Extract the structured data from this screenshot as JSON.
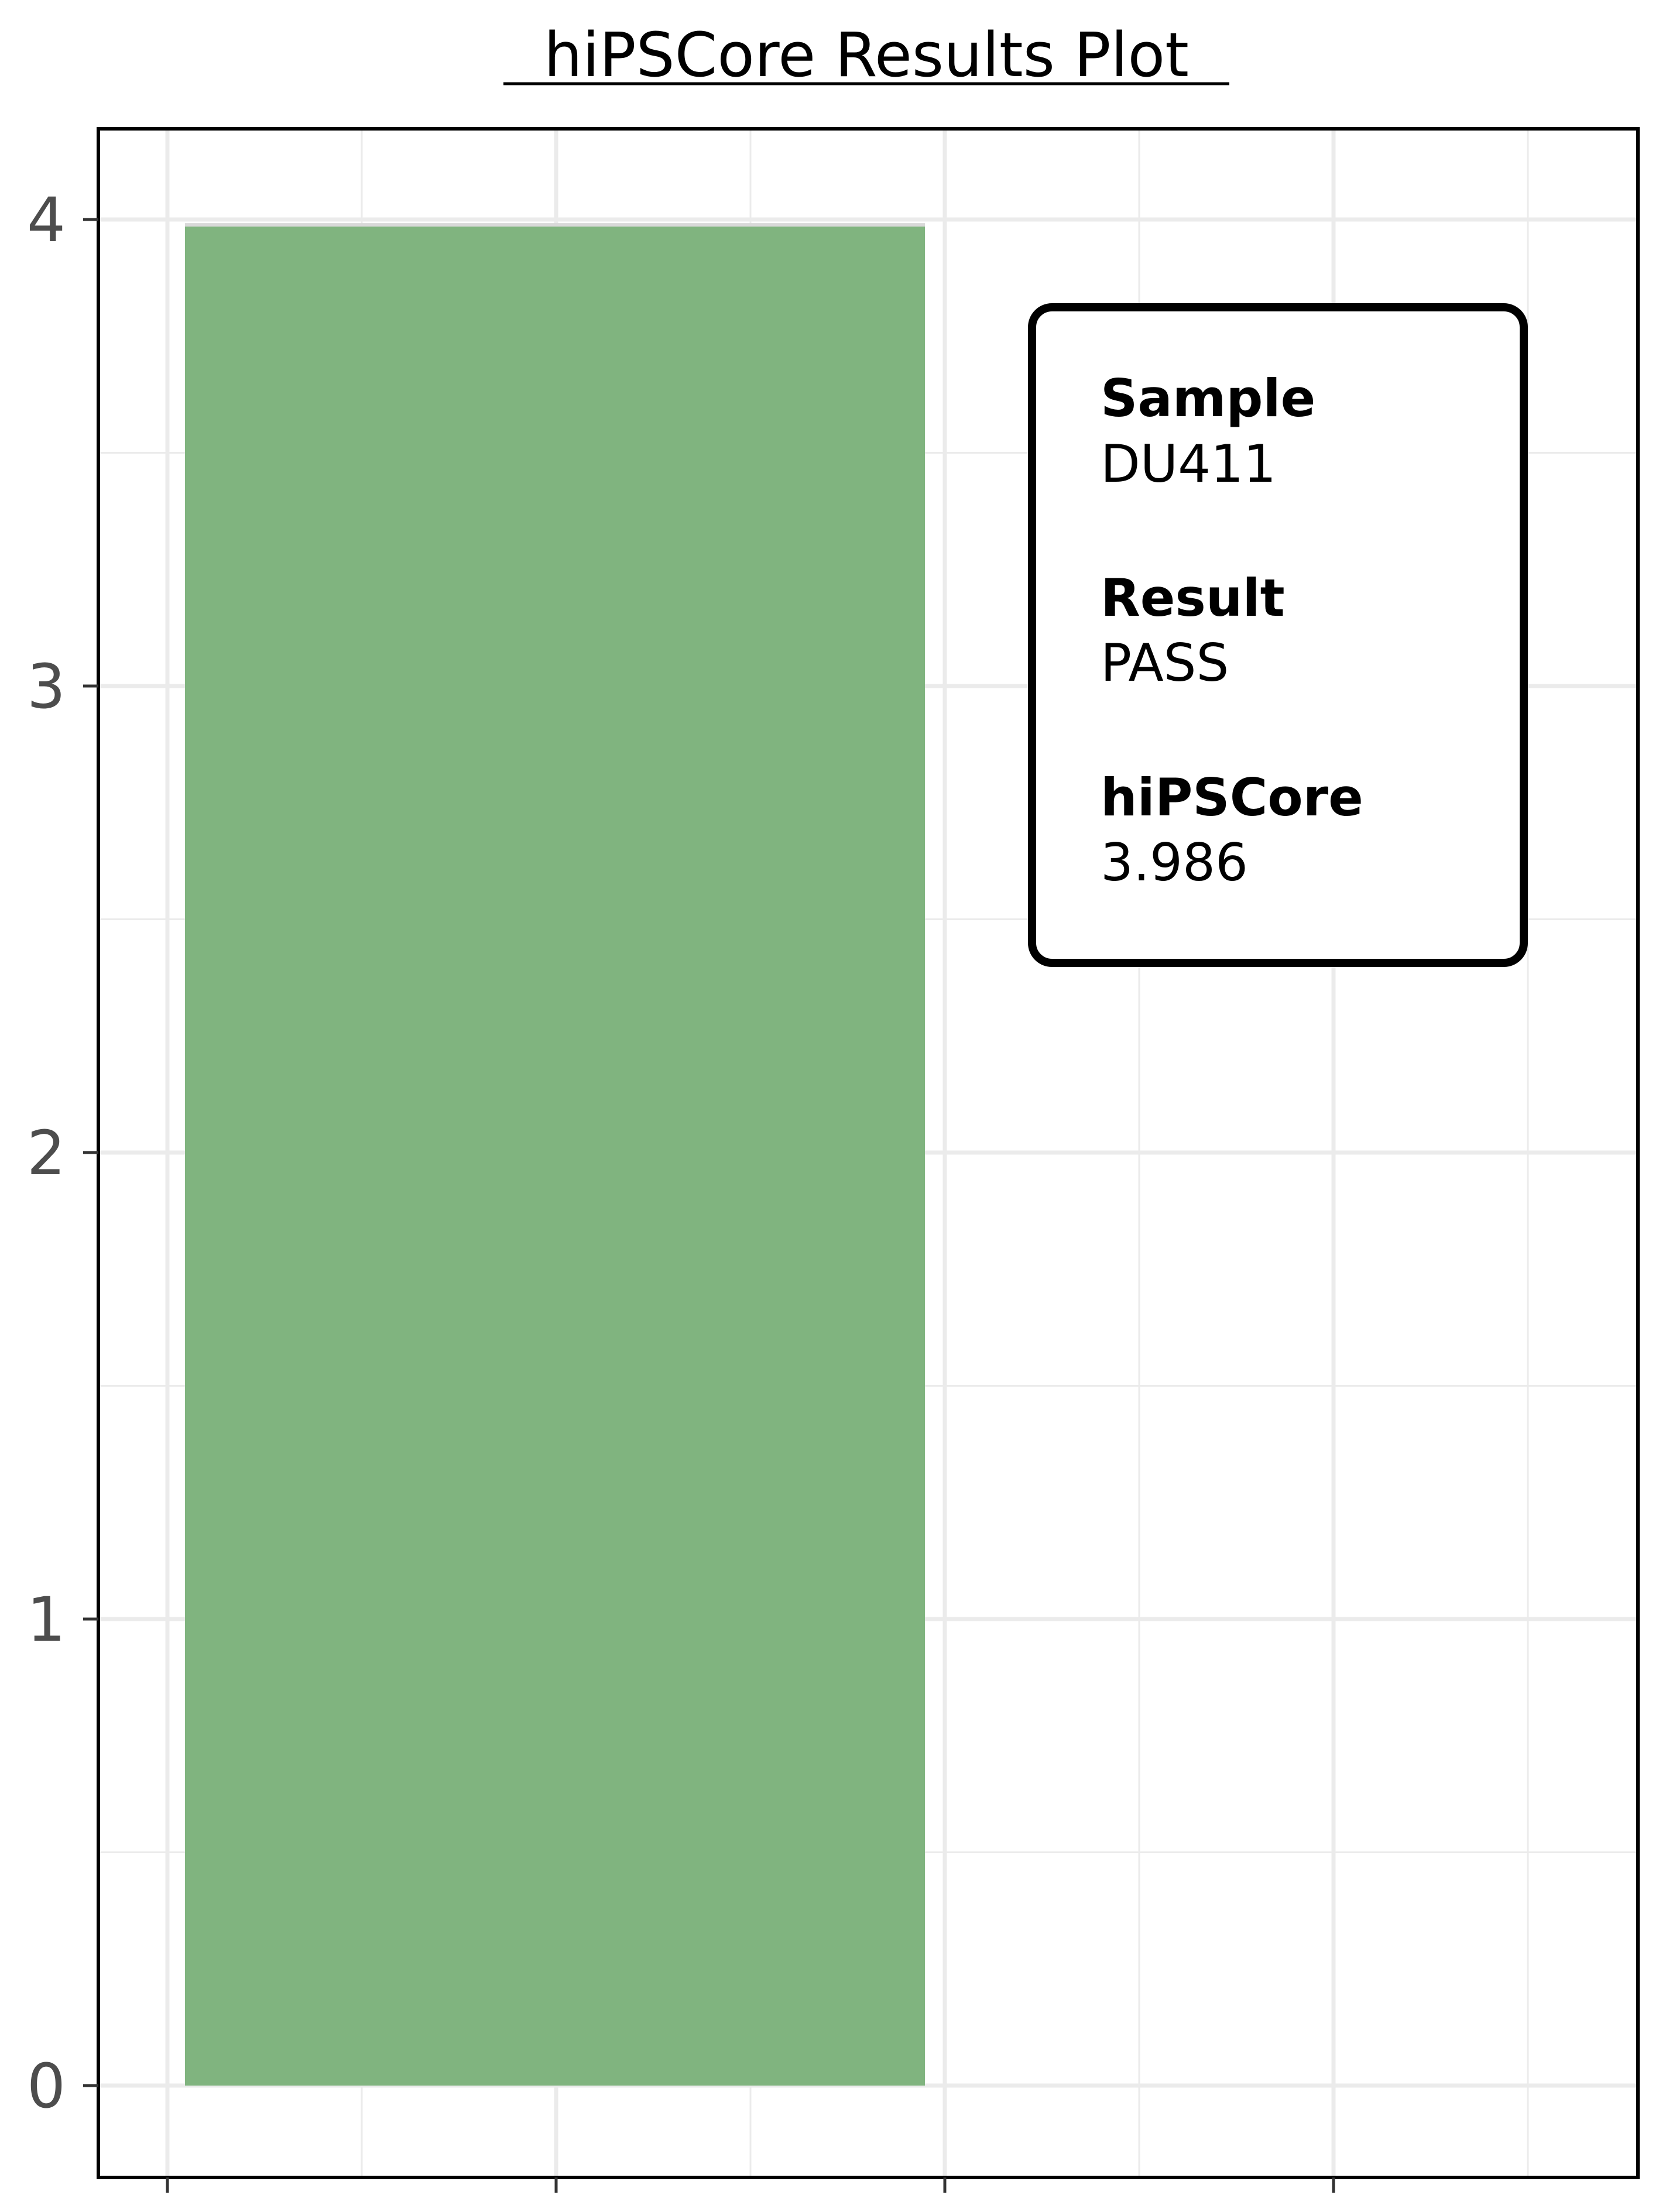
{
  "chart_data": {
    "type": "bar",
    "title": "hiPSCore Results Plot",
    "xlabel": "",
    "ylabel": "",
    "categories": [
      ""
    ],
    "values": [
      3.986
    ],
    "ylim": [
      -0.19,
      4.2
    ],
    "yticks": [
      "0",
      "1",
      "2",
      "3",
      "4"
    ],
    "grid": true,
    "bar_color": "#80b47f",
    "annotation": {
      "sample_label": "Sample",
      "sample_value": "DU411",
      "result_label": "Result",
      "result_value": "PASS",
      "result_color": "#228b22",
      "score_label": "hiPSCore",
      "score_value": "3.986"
    }
  }
}
